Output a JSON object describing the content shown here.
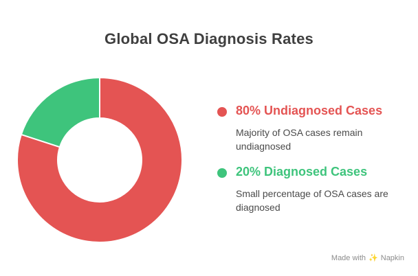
{
  "chart_data": {
    "type": "pie",
    "title": "Global OSA Diagnosis Rates",
    "donut": true,
    "series": [
      {
        "name": "80% Undiagnosed Cases",
        "value": 80,
        "description": "Majority of OSA cases remain undiagnosed",
        "color": "#e45453"
      },
      {
        "name": "20% Diagnosed Cases",
        "value": 20,
        "description": "Small percentage of OSA cases are diagnosed",
        "color": "#3ec47c"
      }
    ],
    "legend_position": "right"
  },
  "watermark": {
    "prefix": "Made with",
    "brand": "Napkin",
    "icon": "napkin-logo-icon"
  }
}
